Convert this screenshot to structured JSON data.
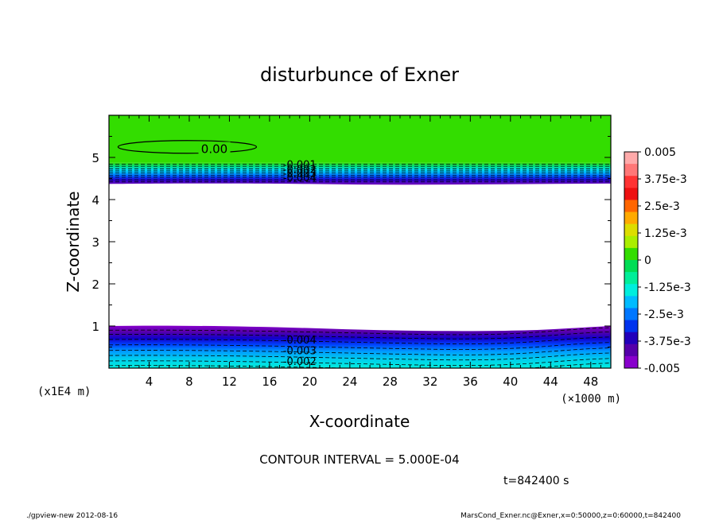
{
  "chart_data": {
    "type": "contour",
    "title": "disturbunce of Exner",
    "xlabel": "X-coordinate",
    "ylabel": "Z-coordinate",
    "x_unit_label": "(×1000 m)",
    "y_unit_label": "(x1E4 m)",
    "xlim": [
      0,
      50
    ],
    "ylim": [
      0,
      6
    ],
    "x_ticks": [
      "4",
      "8",
      "12",
      "16",
      "20",
      "24",
      "28",
      "32",
      "36",
      "40",
      "44",
      "48"
    ],
    "x_tick_values": [
      4,
      8,
      12,
      16,
      20,
      24,
      28,
      32,
      36,
      40,
      44,
      48
    ],
    "y_ticks": [
      "1",
      "2",
      "3",
      "4",
      "5"
    ],
    "y_tick_values": [
      1,
      2,
      3,
      4,
      5
    ],
    "colorbar": {
      "range": [
        -0.005,
        0.005
      ],
      "labels": [
        "0.005",
        "3.75e-3",
        "2.5e-3",
        "1.25e-3",
        "0",
        "-1.25e-3",
        "-2.5e-3",
        "-3.75e-3",
        "-0.005"
      ],
      "colors": [
        "#ffaaaa",
        "#ff7777",
        "#ff3333",
        "#ee1111",
        "#ff6600",
        "#ffaa00",
        "#dddd00",
        "#aaee00",
        "#33dd00",
        "#00dd55",
        "#00ee99",
        "#00eedd",
        "#00bbff",
        "#0077ff",
        "#0033ee",
        "#2200bb",
        "#5500aa",
        "#8800cc"
      ]
    },
    "contour_labels": [
      {
        "text": "0.00",
        "x": 10.5,
        "y": 5.2
      },
      {
        "text": "-0.001",
        "x": 19.0,
        "y": 4.84
      },
      {
        "text": "-0.002",
        "x": 19.0,
        "y": 4.73
      },
      {
        "text": "-0.003",
        "x": 19.0,
        "y": 4.63
      },
      {
        "text": "-0.004",
        "x": 19.0,
        "y": 4.53
      },
      {
        "text": "-0.004",
        "x": 19.0,
        "y": 0.68
      },
      {
        "text": "-0.003",
        "x": 19.0,
        "y": 0.42
      },
      {
        "text": "-0.002",
        "x": 19.0,
        "y": 0.17
      }
    ],
    "annotation": "CONTOUR INTERVAL = 5.000E-04",
    "time_label": "t=842400 s"
  },
  "footer": {
    "left": "./gpview-new  2012-08-16",
    "right": "MarsCond_Exner.nc@Exner,x=0:50000,z=0:60000,t=842400"
  },
  "colors": {
    "top_band": "#33dd00",
    "bottom_band_dark": "#8800cc",
    "bottom_band_light": "#00eedd"
  }
}
